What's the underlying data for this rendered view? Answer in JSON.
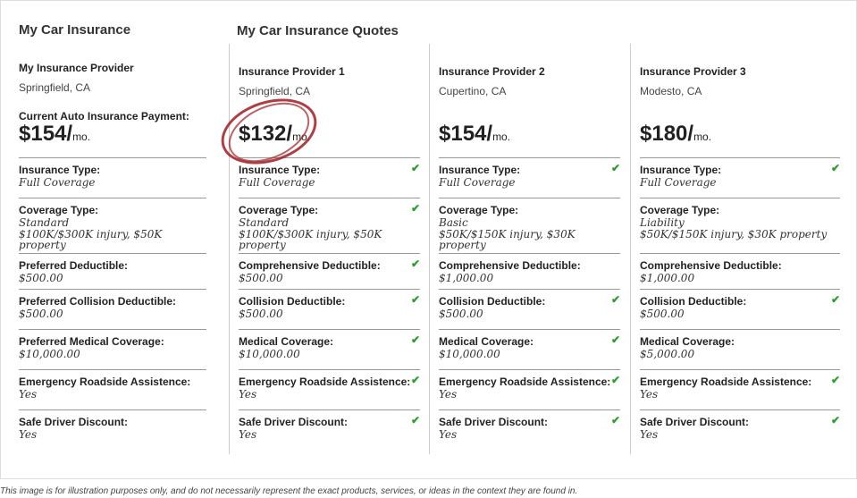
{
  "left": {
    "title": "My Car Insurance",
    "provider": "My Insurance Provider",
    "location": "Springfield, CA",
    "payment_label": "Current Auto Insurance Payment:",
    "price": "$154/",
    "per": "mo.",
    "rows": [
      {
        "label": "Insurance Type:",
        "value": "Full Coverage"
      },
      {
        "label": "Coverage Type:",
        "value": "Standard",
        "value2": "$100K/$300K injury, $50K property"
      },
      {
        "label": "Preferred Deductible:",
        "value": "$500.00"
      },
      {
        "label": "Preferred Collision Deductible:",
        "value": "$500.00"
      },
      {
        "label": "Preferred Medical Coverage:",
        "value": "$10,000.00"
      },
      {
        "label": "Emergency Roadside Assistence:",
        "value": "Yes"
      },
      {
        "label": "Safe Driver Discount:",
        "value": "Yes"
      }
    ]
  },
  "quotes": {
    "title": "My Car Insurance Quotes",
    "check_color": "#2a9d2a",
    "highlight_color": "#a01c22",
    "providers": [
      {
        "name": "Insurance Provider 1",
        "location": "Springfield, CA",
        "price": "$132/",
        "per": "mo.",
        "rows": [
          {
            "label": "Insurance Type:",
            "value": "Full Coverage",
            "check": true
          },
          {
            "label": "Coverage Type:",
            "value": "Standard",
            "value2": "$100K/$300K injury, $50K property",
            "check": true
          },
          {
            "label": "Comprehensive Deductible:",
            "value": "$500.00",
            "check": true
          },
          {
            "label": "Collision Deductible:",
            "value": "$500.00",
            "check": true
          },
          {
            "label": "Medical Coverage:",
            "value": "$10,000.00",
            "check": true
          },
          {
            "label": "Emergency Roadside Assistence:",
            "value": "Yes",
            "check": true
          },
          {
            "label": "Safe Driver Discount:",
            "value": "Yes",
            "check": true
          }
        ]
      },
      {
        "name": "Insurance Provider 2",
        "location": "Cupertino, CA",
        "price": "$154/",
        "per": "mo.",
        "rows": [
          {
            "label": "Insurance Type:",
            "value": "Full Coverage",
            "check": true
          },
          {
            "label": "Coverage Type:",
            "value": "Basic",
            "value2": "$50K/$150K injury, $30K property",
            "check": false
          },
          {
            "label": "Comprehensive Deductible:",
            "value": "$1,000.00",
            "check": false
          },
          {
            "label": "Collision Deductible:",
            "value": "$500.00",
            "check": true
          },
          {
            "label": "Medical Coverage:",
            "value": "$10,000.00",
            "check": true
          },
          {
            "label": "Emergency Roadside Assistence:",
            "value": "Yes",
            "check": true
          },
          {
            "label": "Safe Driver Discount:",
            "value": "Yes",
            "check": true
          }
        ]
      },
      {
        "name": "Insurance Provider 3",
        "location": "Modesto, CA",
        "price": "$180/",
        "per": "mo.",
        "rows": [
          {
            "label": "Insurance Type:",
            "value": "Full Coverage",
            "check": true
          },
          {
            "label": "Coverage Type:",
            "value": "Liability",
            "value2": "$50K/$150K injury, $30K property",
            "check": false
          },
          {
            "label": "Comprehensive Deductible:",
            "value": "$1,000.00",
            "check": false
          },
          {
            "label": "Collision Deductible:",
            "value": "$500.00",
            "check": true
          },
          {
            "label": "Medical Coverage:",
            "value": "$5,000.00",
            "check": false
          },
          {
            "label": "Emergency Roadside Assistence:",
            "value": "Yes",
            "check": true
          },
          {
            "label": "Safe Driver Discount:",
            "value": "Yes",
            "check": true
          }
        ]
      }
    ]
  },
  "footer": "This image is for illustration purposes only, and do not necessarily represent the exact products, services, or ideas in the context they are found in."
}
